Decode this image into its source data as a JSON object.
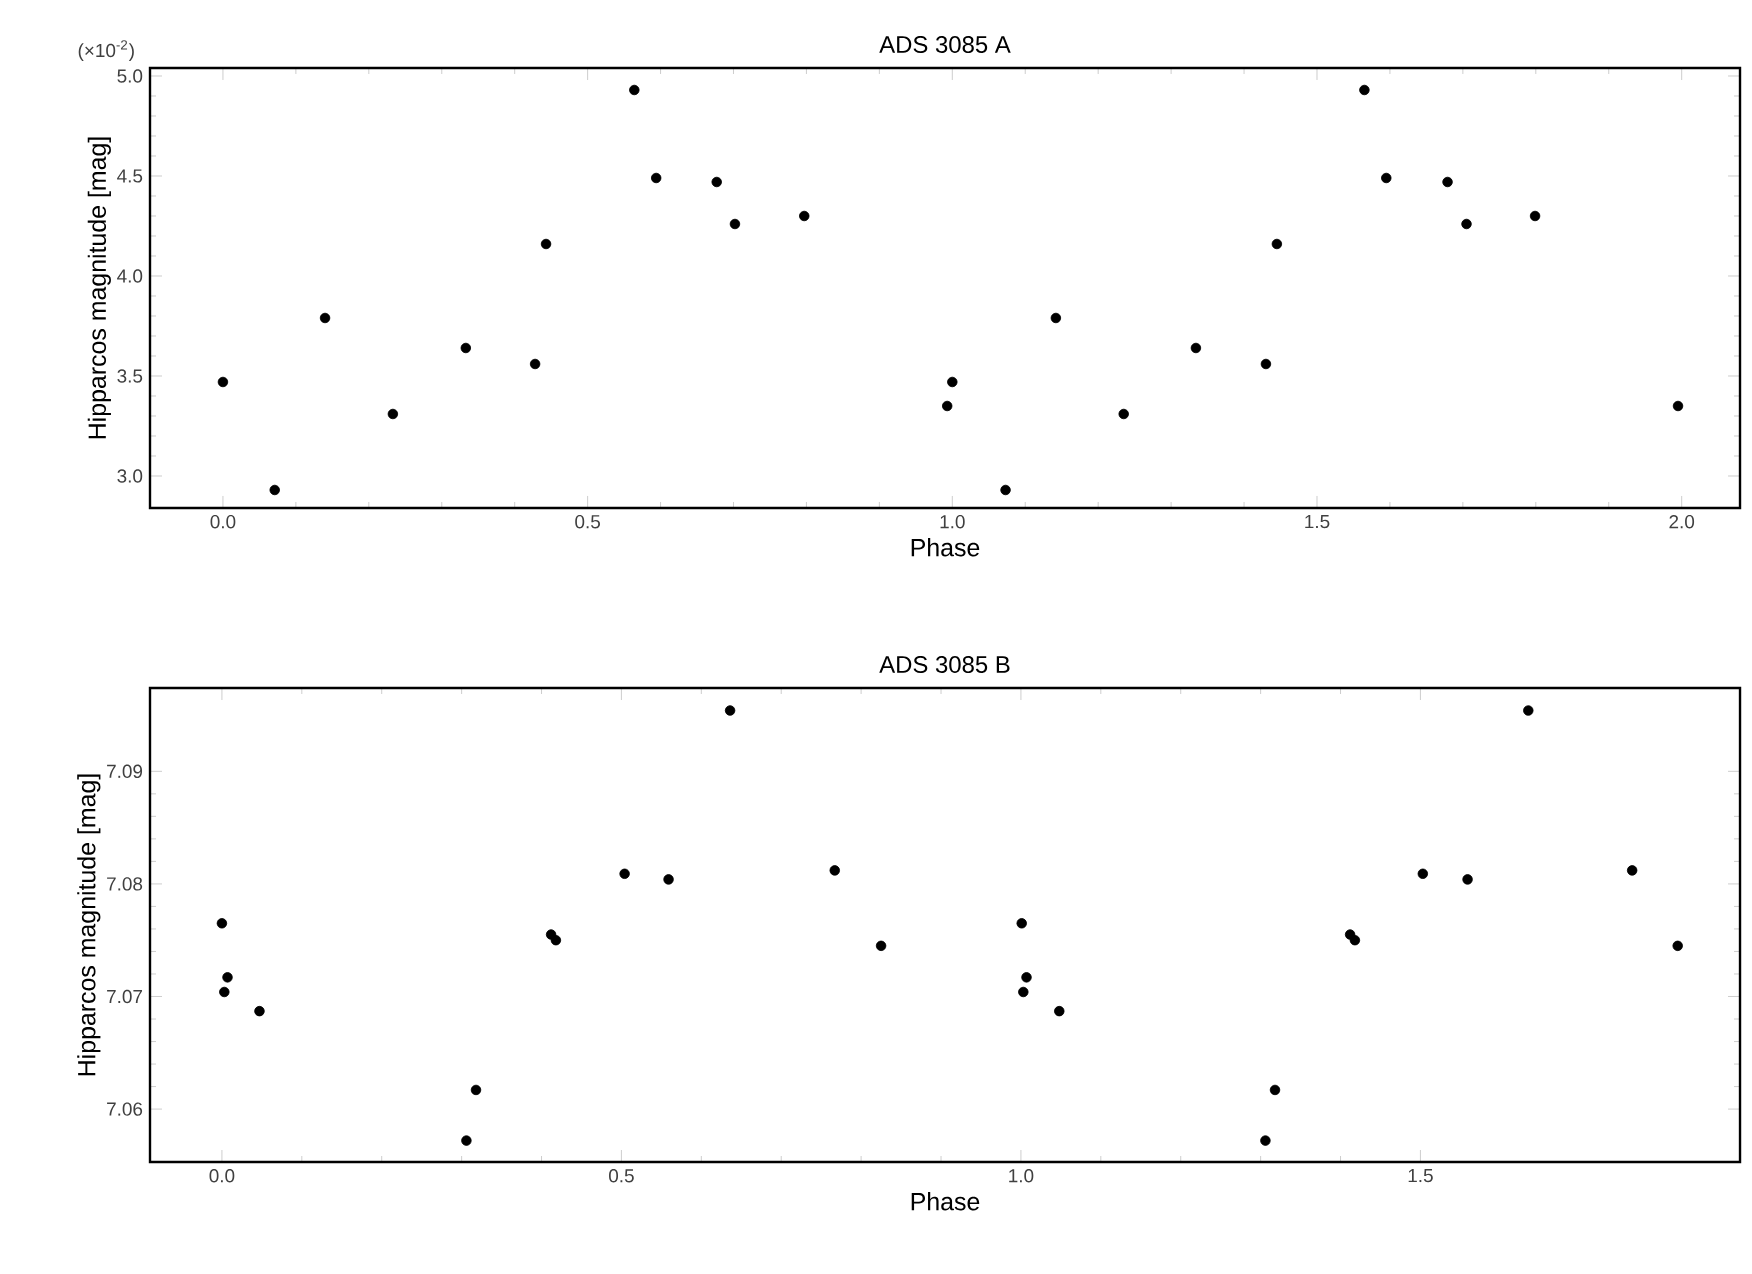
{
  "chart_data": [
    {
      "type": "scatter",
      "title": "ADS 3085 A",
      "xlabel": "Phase",
      "ylabel": "Hipparcos magnitude [mag]",
      "annotations": [
        "(×10$^{-2}$)"
      ],
      "series": [
        {
          "color": "#000000",
          "x": [
            0.0,
            0.071,
            0.14,
            0.233,
            0.333,
            0.428,
            0.443,
            0.564,
            0.594,
            0.677,
            0.702,
            0.797,
            0.993,
            1.0,
            1.073,
            1.142,
            1.235,
            1.334,
            1.43,
            1.445,
            1.565,
            1.595,
            1.679,
            1.705,
            1.799,
            1.995
          ],
          "values": [
            3.47,
            2.93,
            3.79,
            3.31,
            3.64,
            3.56,
            4.16,
            4.93,
            4.49,
            4.47,
            4.26,
            4.3,
            3.35,
            3.47,
            2.93,
            3.79,
            3.31,
            3.64,
            3.56,
            4.16,
            4.93,
            4.49,
            4.47,
            4.26,
            4.3,
            3.35
          ]
        }
      ],
      "xlim": [
        -0.1,
        2.08
      ],
      "ylim": [
        2.84,
        5.04
      ],
      "xticks": [
        {
          "value": 0,
          "label": "0.0"
        },
        {
          "value": 0.5,
          "label": "0.5"
        },
        {
          "value": 1,
          "label": "1.0"
        },
        {
          "value": 1.5,
          "label": "1.5"
        },
        {
          "value": 2,
          "label": "2.0"
        }
      ],
      "yticks": [
        {
          "value": 3,
          "label": "3.0"
        },
        {
          "value": 3.5,
          "label": "3.5"
        },
        {
          "value": 4,
          "label": "4.0"
        },
        {
          "value": 4.5,
          "label": "4.5"
        },
        {
          "value": 5,
          "label": "5.0"
        }
      ]
    },
    {
      "type": "scatter",
      "title": "ADS 3085 B",
      "xlabel": "Phase",
      "ylabel": "Hipparcos magnitude [mag]",
      "series": [
        {
          "color": "#000000",
          "x": [
            0.0,
            0.007,
            0.003,
            0.047,
            0.306,
            0.318,
            0.412,
            0.418,
            0.504,
            0.559,
            0.636,
            0.767,
            0.825,
            1.001,
            1.007,
            1.003,
            1.048,
            1.306,
            1.318,
            1.412,
            1.418,
            1.503,
            1.559,
            1.635,
            1.765,
            1.822
          ],
          "values": [
            7.0765,
            7.0717,
            7.0704,
            7.0687,
            7.0572,
            7.0617,
            7.0755,
            7.075,
            7.0809,
            7.0804,
            7.0954,
            7.0812,
            7.0745,
            7.0765,
            7.0717,
            7.0704,
            7.0687,
            7.0572,
            7.0617,
            7.0755,
            7.075,
            7.0809,
            7.0804,
            7.0954,
            7.0812,
            7.0745
          ]
        }
      ],
      "xlim": [
        -0.09,
        1.9
      ],
      "ylim": [
        7.0553,
        7.0974
      ],
      "xticks": [
        {
          "value": 0,
          "label": "0.0"
        },
        {
          "value": 0.5,
          "label": "0.5"
        },
        {
          "value": 1,
          "label": "1.0"
        },
        {
          "value": 1.5,
          "label": "1.5"
        }
      ],
      "yticks": [
        7.06,
        7.07,
        7.08,
        7.09
      ]
    }
  ]
}
